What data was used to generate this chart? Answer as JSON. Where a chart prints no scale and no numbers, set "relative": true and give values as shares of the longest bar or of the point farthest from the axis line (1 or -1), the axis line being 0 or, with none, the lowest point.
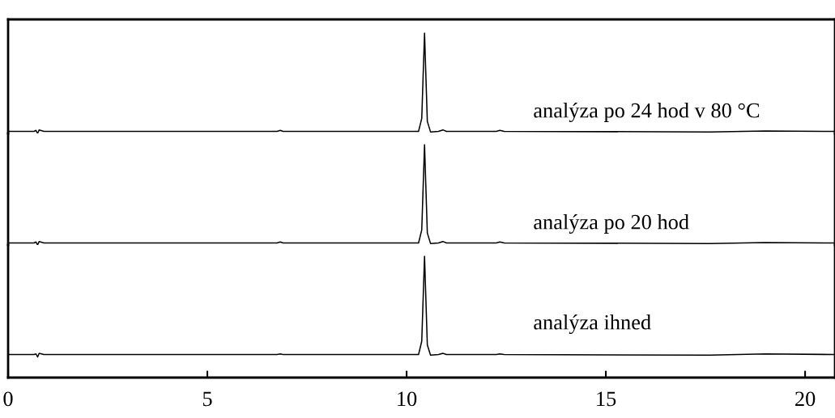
{
  "chart_data": [
    {
      "type": "line",
      "relative": true,
      "xlim": [
        0,
        20.75
      ],
      "xticks": [
        0,
        5,
        10,
        15,
        20
      ],
      "tick_labels": false,
      "annotations": [
        "analýza po 24 hod v 80 °C"
      ],
      "series": [
        {
          "color": "#000000",
          "x": [
            0,
            0.65,
            0.7,
            0.74,
            0.78,
            0.9,
            6.75,
            6.83,
            6.9,
            10.3,
            10.38,
            10.45,
            10.52,
            10.6,
            10.8,
            10.91,
            11.0,
            12.25,
            12.34,
            12.45,
            17.6,
            19.0,
            20.75
          ],
          "values": [
            0.02,
            0.02,
            0.03,
            0.0,
            0.035,
            0.02,
            0.02,
            0.03,
            0.02,
            0.02,
            0.15,
            1,
            0.12,
            0.015,
            0.02,
            0.035,
            0.02,
            0.02,
            0.03,
            0.02,
            0.015,
            0.025,
            0.02
          ]
        }
      ]
    },
    {
      "type": "line",
      "relative": true,
      "xlim": [
        0,
        20.75
      ],
      "xticks": [
        0,
        5,
        10,
        15,
        20
      ],
      "tick_labels": false,
      "annotations": [
        "analýza po 20 hod"
      ],
      "series": [
        {
          "color": "#000000",
          "x": [
            0,
            0.65,
            0.7,
            0.74,
            0.78,
            0.9,
            6.75,
            6.83,
            6.9,
            10.3,
            10.38,
            10.45,
            10.52,
            10.6,
            10.8,
            10.91,
            11.0,
            12.25,
            12.34,
            12.45,
            17.6,
            19.0,
            20.75
          ],
          "values": [
            0.02,
            0.02,
            0.03,
            0.0,
            0.035,
            0.02,
            0.02,
            0.03,
            0.02,
            0.02,
            0.15,
            1,
            0.12,
            0.015,
            0.02,
            0.035,
            0.02,
            0.02,
            0.03,
            0.02,
            0.015,
            0.025,
            0.02
          ]
        }
      ]
    },
    {
      "type": "line",
      "relative": true,
      "xlim": [
        0,
        20.75
      ],
      "xticks": [
        0,
        5,
        10,
        15,
        20
      ],
      "tick_labels": "x",
      "annotations": [
        "analýza ihned"
      ],
      "series": [
        {
          "color": "#000000",
          "x": [
            0,
            0.65,
            0.7,
            0.74,
            0.78,
            0.9,
            6.75,
            6.83,
            6.9,
            10.3,
            10.38,
            10.45,
            10.52,
            10.6,
            10.8,
            10.91,
            11.0,
            12.25,
            12.34,
            12.45,
            17.6,
            19.0,
            20.75
          ],
          "values": [
            0.19,
            0.19,
            0.195,
            0.17,
            0.2,
            0.19,
            0.19,
            0.195,
            0.19,
            0.19,
            0.3,
            1,
            0.27,
            0.185,
            0.19,
            0.2,
            0.19,
            0.19,
            0.195,
            0.19,
            0.185,
            0.195,
            0.19
          ]
        }
      ]
    }
  ]
}
